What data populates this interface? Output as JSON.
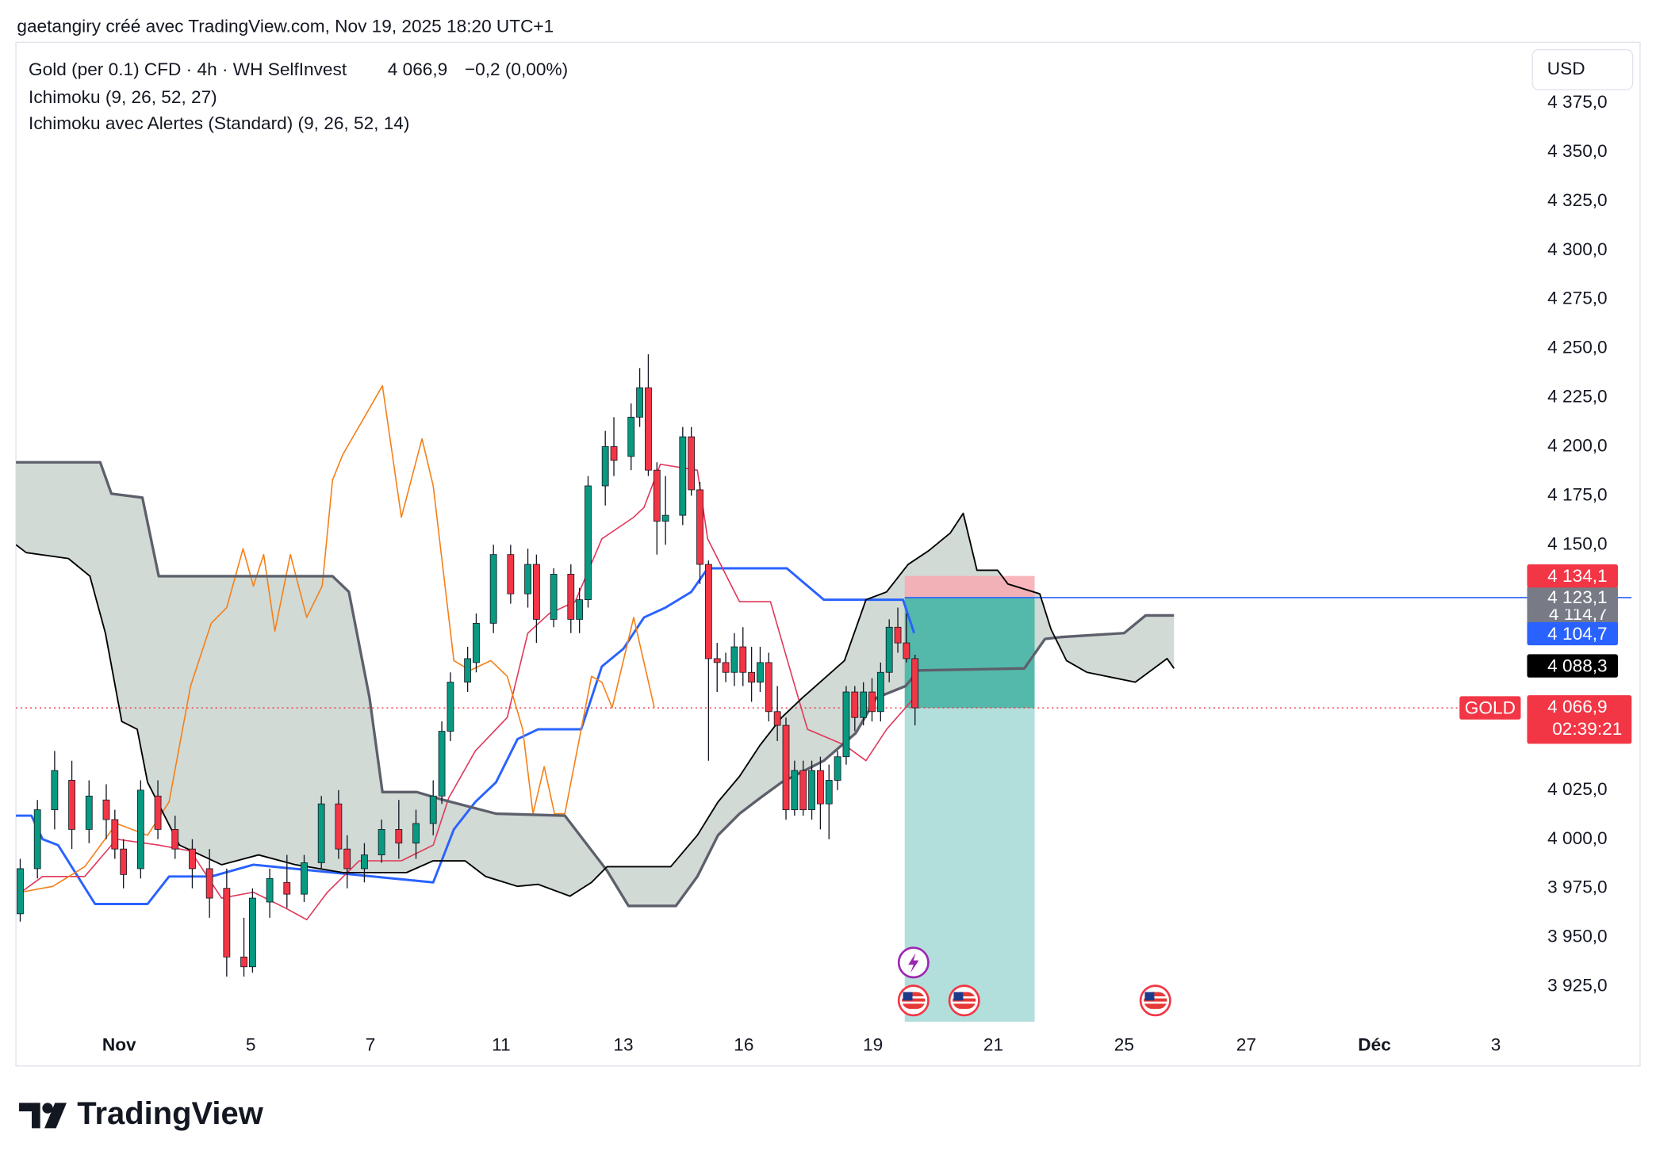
{
  "header": {
    "attribution": "gaetangiry créé avec TradingView.com, Nov 19, 2025 18:20 UTC+1",
    "symbol": "Gold (per 0.1) CFD · 4h · WH SelfInvest",
    "price": "4 066,9",
    "change": "−0,2 (0,00%)",
    "indicators": [
      "Ichimoku (9, 26, 52, 27)",
      "Ichimoku avec Alertes (Standard) (9, 26, 52, 14)"
    ]
  },
  "currency": "USD",
  "logo": "TradingView",
  "chart_data": {
    "type": "candlestick",
    "up_color": "#089981",
    "down_color": "#f23645",
    "xlim": [
      -0.5,
      174.4
    ],
    "ylim": [
      3906,
      4406
    ],
    "xticks": [
      {
        "value": 11.5,
        "label": "Nov"
      },
      {
        "value": 26.8,
        "label": "5"
      },
      {
        "value": 40.7,
        "label": "7"
      },
      {
        "value": 55.9,
        "label": "11"
      },
      {
        "value": 70.1,
        "label": "13"
      },
      {
        "value": 84.1,
        "label": "16"
      },
      {
        "value": 99.1,
        "label": "19"
      },
      {
        "value": 113.1,
        "label": "21"
      },
      {
        "value": 128.3,
        "label": "25"
      },
      {
        "value": 142.5,
        "label": "27"
      },
      {
        "value": 157.4,
        "label": "Déc"
      },
      {
        "value": 171.5,
        "label": "3"
      }
    ],
    "yticks": [
      {
        "value": 4375,
        "label": "4 375,0"
      },
      {
        "value": 4350,
        "label": "4 350,0"
      },
      {
        "value": 4325,
        "label": "4 325,0"
      },
      {
        "value": 4300,
        "label": "4 300,0"
      },
      {
        "value": 4275,
        "label": "4 275,0"
      },
      {
        "value": 4250,
        "label": "4 250,0"
      },
      {
        "value": 4225,
        "label": "4 225,0"
      },
      {
        "value": 4200,
        "label": "4 200,0"
      },
      {
        "value": 4175,
        "label": "4 175,0"
      },
      {
        "value": 4150,
        "label": "4 150,0"
      },
      {
        "value": 4025,
        "label": "4 025,0"
      },
      {
        "value": 4000,
        "label": "4 000,0"
      },
      {
        "value": 3975,
        "label": "3 975,0"
      },
      {
        "value": 3950,
        "label": "3 950,0"
      },
      {
        "value": 3925,
        "label": "3 925,0"
      }
    ],
    "x": [
      0,
      2,
      4,
      6,
      8,
      10,
      11,
      12,
      14,
      16,
      18,
      20,
      22,
      24,
      26,
      27,
      29,
      31,
      33,
      35,
      37,
      38,
      40,
      42,
      44,
      46,
      48,
      49,
      50,
      52,
      53,
      55,
      57,
      59,
      60,
      62,
      64,
      65,
      66,
      68,
      69,
      71,
      72,
      73,
      74,
      75,
      77,
      78,
      79,
      80,
      81,
      82,
      83,
      84,
      85,
      86,
      87,
      88,
      89,
      90,
      91,
      92,
      93,
      94,
      95,
      96,
      97,
      98,
      99,
      100,
      101,
      102,
      103,
      104
    ],
    "open": [
      3962,
      3985,
      4015,
      4030,
      4005,
      4020,
      4010,
      3995,
      3985,
      4022,
      4005,
      3995,
      3985,
      3975,
      3940,
      3935,
      3968,
      3978,
      3972,
      3988,
      4018,
      3995,
      3985,
      3992,
      4005,
      3998,
      4008,
      4022,
      4055,
      4080,
      4090,
      4110,
      4145,
      4125,
      4140,
      4112,
      4135,
      4112,
      4122,
      4180,
      4200,
      4195,
      4215,
      4230,
      4188,
      4162,
      4165,
      4205,
      4178,
      4140,
      4092,
      4090,
      4085,
      4098,
      4085,
      4080,
      4090,
      4065,
      4058,
      4015,
      4035,
      4015,
      4035,
      4018,
      4030,
      4042,
      4075,
      4062,
      4075,
      4065,
      4085,
      4108,
      4100,
      4092
    ],
    "high": [
      3990,
      4020,
      4045,
      4040,
      4030,
      4028,
      4015,
      4000,
      4030,
      4030,
      4012,
      4000,
      3995,
      3985,
      3960,
      3975,
      3985,
      3992,
      3992,
      4022,
      4025,
      4002,
      3998,
      4010,
      4020,
      4015,
      4030,
      4060,
      4085,
      4098,
      4115,
      4150,
      4150,
      4148,
      4145,
      4138,
      4140,
      4128,
      4185,
      4208,
      4215,
      4222,
      4240,
      4247,
      4192,
      4185,
      4210,
      4210,
      4182,
      4142,
      4100,
      4095,
      4105,
      4108,
      4098,
      4098,
      4095,
      4078,
      4062,
      4040,
      4040,
      4040,
      4042,
      4038,
      4045,
      4078,
      4078,
      4080,
      4082,
      4090,
      4112,
      4118,
      4115,
      4094
    ],
    "low": [
      3958,
      3980,
      4005,
      3995,
      3998,
      4000,
      3990,
      3975,
      3980,
      4000,
      3990,
      3975,
      3960,
      3930,
      3930,
      3932,
      3960,
      3965,
      3968,
      3985,
      3990,
      3975,
      3978,
      3988,
      3990,
      3990,
      4002,
      4018,
      4050,
      4075,
      4085,
      4105,
      4120,
      4118,
      4100,
      4108,
      4105,
      4105,
      4118,
      4170,
      4185,
      4188,
      4210,
      4185,
      4145,
      4150,
      4160,
      4175,
      4130,
      4040,
      4075,
      4080,
      4078,
      4078,
      4070,
      4075,
      4060,
      4050,
      4010,
      4012,
      4012,
      4010,
      4005,
      4000,
      4025,
      4038,
      4055,
      4058,
      4060,
      4060,
      4080,
      4095,
      4090,
      4058
    ],
    "close": [
      3985,
      4015,
      4035,
      4005,
      4022,
      4010,
      3995,
      3982,
      4025,
      4005,
      3995,
      3985,
      3970,
      3940,
      3935,
      3970,
      3980,
      3972,
      3988,
      4018,
      3995,
      3985,
      3992,
      4005,
      3998,
      4008,
      4022,
      4055,
      4080,
      4092,
      4110,
      4145,
      4125,
      4140,
      4112,
      4135,
      4112,
      4122,
      4180,
      4200,
      4193,
      4215,
      4230,
      4188,
      4162,
      4165,
      4205,
      4178,
      4140,
      4092,
      4090,
      4085,
      4098,
      4085,
      4080,
      4090,
      4065,
      4058,
      4015,
      4035,
      4015,
      4035,
      4018,
      4030,
      4042,
      4075,
      4062,
      4075,
      4065,
      4085,
      4108,
      4100,
      4092,
      4066.9
    ],
    "series": [
      {
        "color": "#2962ff",
        "x": [
          -0.5,
          1.3,
          2.6,
          4.4,
          8.7,
          14.8,
          17.3,
          22.2,
          27.1,
          48.0,
          50.4,
          52.9,
          55.3,
          57.8,
          60.2,
          65.2,
          67.6,
          70.1,
          72.5,
          75.0,
          78.0,
          79.9,
          89.1,
          93.4,
          102.6,
          103.9
        ],
        "values": [
          4012,
          4012,
          4000,
          3997,
          3967,
          3967,
          3981,
          3981,
          3987,
          3978,
          4005,
          4019,
          4029,
          4051,
          4056,
          4056,
          4088,
          4097,
          4113,
          4118,
          4126,
          4138,
          4138,
          4122,
          4122,
          4105
        ]
      },
      {
        "color": "#e0375a",
        "x": [
          0.1,
          2.6,
          7.5,
          11.2,
          16.1,
          19.8,
          23.4,
          27.1,
          30.8,
          33.3,
          35.7,
          39.4,
          44.3,
          48.0,
          49.8,
          52.9,
          56.6,
          59.0,
          61.5,
          64.5,
          67.6,
          71.3,
          72.5,
          74.4,
          78.7,
          79.9,
          83.6,
          87.2,
          89.7,
          91.5,
          95.8,
          98.3,
          100.7,
          103.9
        ],
        "values": [
          3973,
          3981,
          3981,
          4000,
          3997,
          3994,
          3970,
          3973,
          3965,
          3959,
          3973,
          3989,
          3989,
          3997,
          4021,
          4045,
          4062,
          4105,
          4115,
          4121,
          4153,
          4164,
          4169,
          4191,
          4188,
          4153,
          4121,
          4121,
          4083,
          4056,
          4048,
          4040,
          4056,
          4072
        ]
      },
      {
        "color": "#f57f17",
        "x": [
          0.1,
          3.8,
          7.5,
          11.2,
          14.8,
          17.3,
          19.8,
          22.2,
          24.0,
          25.9,
          27.1,
          28.3,
          29.6,
          31.4,
          33.3,
          35.1,
          36.3,
          37.5,
          40.0,
          42.1,
          44.3,
          46.7,
          48.0,
          50.4,
          52.3,
          54.7,
          56.6,
          58.4,
          59.6,
          60.9,
          62.1,
          63.3,
          65.2,
          66.4,
          67.6,
          68.8,
          71.3,
          73.7
        ],
        "values": [
          3973,
          3976,
          3986,
          4008,
          4002,
          4019,
          4078,
          4110,
          4118,
          4148,
          4129,
          4145,
          4106,
          4145,
          4113,
          4129,
          4183,
          4196,
          4215,
          4231,
          4164,
          4204,
          4180,
          4091,
          4086,
          4091,
          4083,
          4056,
          4013,
          4037,
          4013,
          4013,
          4056,
          4083,
          4080,
          4067,
          4113,
          4067
        ]
      },
      {
        "color": "#5d606b",
        "x": [
          -0.5,
          9.3,
          10.6,
          14.2,
          16.1,
          36.3,
          38.2,
          40.6,
          42.1,
          46.1,
          49.2,
          55.3,
          63.3,
          68.2,
          70.7,
          76.2,
          78.7,
          81.1,
          83.6,
          86.0,
          88.5,
          93.4,
          97.1,
          99.5,
          102.9,
          104.4,
          116.7,
          119.1,
          121.0,
          128.3,
          130.8,
          134.1
        ],
        "values": [
          4192,
          4192,
          4176,
          4174,
          4134,
          4134,
          4126,
          4072,
          4024,
          4024,
          4020,
          4013,
          4012,
          3984,
          3966,
          3966,
          3981,
          4002,
          4013,
          4021,
          4029,
          4040,
          4054,
          4072,
          4078,
          4086,
          4087,
          4102,
          4103,
          4105,
          4114,
          4114
        ]
      },
      {
        "color": "#000000",
        "x": [
          -0.5,
          0.7,
          5.6,
          8.1,
          9.9,
          11.8,
          13.6,
          14.8,
          18.5,
          23.4,
          27.7,
          32.0,
          37.5,
          44.9,
          48.0,
          51.7,
          54.1,
          57.8,
          60.2,
          63.9,
          66.4,
          68.2,
          75.6,
          78.7,
          81.1,
          83.6,
          86.0,
          88.5,
          90.9,
          95.8,
          98.3,
          100.7,
          103.2,
          105.6,
          108.1,
          109.6,
          111.2,
          113.6,
          114.8,
          118.5,
          119.8,
          121.6,
          124.0,
          129.6,
          133.3,
          134.1
        ],
        "values": [
          4150,
          4146,
          4143,
          4134,
          4105,
          4060,
          4056,
          4029,
          3997,
          3987,
          3992,
          3987,
          3983,
          3983,
          3989,
          3989,
          3981,
          3976,
          3977,
          3971,
          3978,
          3986,
          3986,
          4002,
          4019,
          4032,
          4048,
          4062,
          4072,
          4091,
          4122,
          4126,
          4140,
          4147,
          4156,
          4166,
          4137,
          4137,
          4130,
          4125,
          4107,
          4091,
          4085,
          4080,
          4092,
          4087
        ]
      }
    ],
    "cloud_color": "#cfd8d3",
    "position": {
      "x": [
        102.8,
        117.9
      ],
      "entry": 4123.1,
      "stop": 4134.1,
      "target": 3907
    },
    "price_line": {
      "value": 4066.9,
      "label": "4 066,9",
      "name": "GOLD",
      "countdown": "02:39:21",
      "color": "#f23645"
    },
    "badges": [
      {
        "value": 4114.7,
        "label": "4 114,7",
        "color": "#787b86"
      },
      {
        "value": 4123.1,
        "label": "4 123,1",
        "color": "#787b86"
      },
      {
        "value": 4134.1,
        "label": "4 134,1",
        "color": "#f23645"
      },
      {
        "value": 4104.7,
        "label": "4 104,7",
        "color": "#2962ff"
      },
      {
        "value": 4088.3,
        "label": "4 088,3",
        "color": "#000000"
      }
    ]
  }
}
